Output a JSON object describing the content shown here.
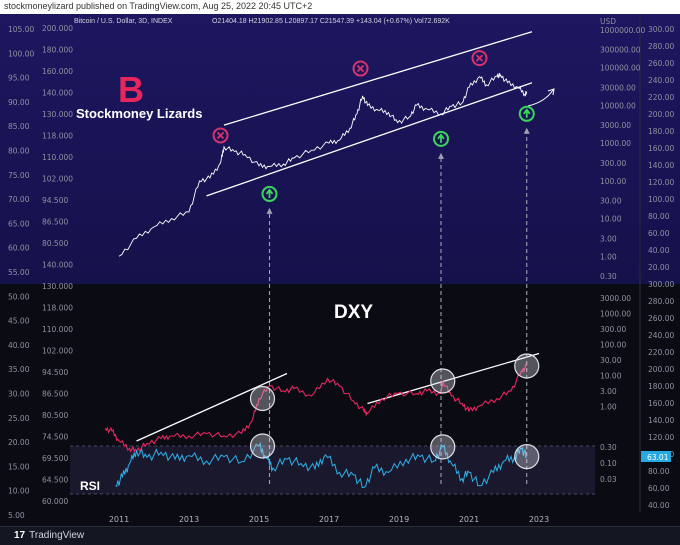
{
  "header": {
    "published_text": "stockmoneylizard published on TradingView.com, Aug 25, 2022 20:45 UTC+2"
  },
  "footer": {
    "logo_text": "TradingView",
    "logo_mark": "17"
  },
  "legend": {
    "symbol": "Bitcoin / U.S. Dollar, 3D, INDEX",
    "ohlc": "O21404.18  H21902.85  L20897.17  C21547.39  +143.04 (+0.67%)  Vol72.692K"
  },
  "annotations": {
    "brand": "Stockmoney Lizards",
    "brand_mark": "B",
    "dxy_label": "DXY",
    "rsi_label": "RSI",
    "currency": "USD"
  },
  "colors": {
    "bg_top": "#1a1557",
    "bg_bottom": "#0b0b14",
    "btc_line": "#ffffff",
    "dxy_line": "#e8265e",
    "rsi_line": "#2fb0e8",
    "sell_marker": "#d6336c",
    "buy_marker": "#3cd65a",
    "trendline": "#ffffff",
    "rsi_badge": "#26a8e0"
  },
  "chart_data": [
    {
      "type": "line",
      "name": "btc-panel",
      "log_scale": true,
      "x": [
        2011.0,
        2011.5,
        2012.0,
        2012.5,
        2013.0,
        2013.3,
        2013.6,
        2013.9,
        2014.0,
        2014.3,
        2014.6,
        2015.0,
        2015.3,
        2015.7,
        2016.0,
        2016.5,
        2017.0,
        2017.3,
        2017.6,
        2017.8,
        2017.96,
        2018.1,
        2018.4,
        2018.7,
        2018.96,
        2019.3,
        2019.5,
        2019.8,
        2020.2,
        2020.5,
        2020.8,
        2021.0,
        2021.3,
        2021.5,
        2021.8,
        2021.9,
        2022.1,
        2022.4,
        2022.6,
        2022.65
      ],
      "values": [
        1,
        3,
        6,
        10,
        15,
        100,
        120,
        300,
        800,
        600,
        500,
        250,
        240,
        280,
        400,
        650,
        1000,
        1200,
        2500,
        6000,
        18000,
        10000,
        7500,
        6500,
        3500,
        5000,
        10000,
        8000,
        6000,
        9500,
        11500,
        30000,
        58000,
        35000,
        60000,
        64000,
        40000,
        30000,
        20000,
        21547
      ],
      "right_axis_ticks": [
        "1000000.00",
        "300000.00",
        "100000.00",
        "30000.00",
        "10000.00",
        "3000.00",
        "1000.00",
        "300.00",
        "100.00",
        "30.00",
        "10.00",
        "3.00",
        "1.00",
        "0.30"
      ],
      "right_axis_values": [
        1000000,
        300000,
        100000,
        30000,
        10000,
        3000,
        1000,
        300,
        100,
        30,
        10,
        3,
        1,
        0.3
      ],
      "trendlines": [
        {
          "from": [
            2014.0,
            3000
          ],
          "to": [
            2022.8,
            900000
          ]
        },
        {
          "from": [
            2013.5,
            40
          ],
          "to": [
            2022.8,
            40000
          ]
        }
      ],
      "sell_markers": [
        {
          "x": 2013.9,
          "y": 1600
        },
        {
          "x": 2017.9,
          "y": 95000
        },
        {
          "x": 2021.3,
          "y": 180000
        }
      ],
      "buy_markers": [
        {
          "x": 2015.3,
          "y": 45
        },
        {
          "x": 2020.2,
          "y": 1300
        },
        {
          "x": 2022.65,
          "y": 6000
        }
      ]
    },
    {
      "type": "line",
      "name": "dxy-panel",
      "x": [
        2010.6,
        2010.8,
        2011.0,
        2011.3,
        2011.5,
        2011.8,
        2012.2,
        2012.5,
        2013.0,
        2013.5,
        2014.0,
        2014.5,
        2014.8,
        2015.0,
        2015.3,
        2015.7,
        2016.0,
        2016.5,
        2016.96,
        2017.3,
        2017.7,
        2018.0,
        2018.1,
        2018.5,
        2018.96,
        2019.5,
        2019.8,
        2020.2,
        2020.25,
        2020.5,
        2020.8,
        2021.0,
        2021.3,
        2021.8,
        2022.2,
        2022.5,
        2022.65
      ],
      "values": [
        83,
        82,
        78,
        75,
        74,
        77,
        79,
        80,
        80,
        81,
        80,
        81,
        86,
        95,
        100,
        98,
        99,
        96,
        103,
        100,
        94,
        90,
        89,
        95,
        97,
        97,
        98,
        97,
        102,
        96,
        93,
        90,
        92,
        95,
        98,
        106,
        108
      ],
      "trendlines": [
        {
          "from": [
            2011.5,
            78
          ],
          "to": [
            2015.8,
            105
          ]
        },
        {
          "from": [
            2018.1,
            93
          ],
          "to": [
            2023.0,
            113
          ]
        }
      ],
      "circles": [
        2015.1,
        2020.25,
        2022.65
      ]
    },
    {
      "type": "line",
      "name": "rsi-panel",
      "x": [
        2010.9,
        2011.1,
        2011.3,
        2011.5,
        2011.8,
        2012.2,
        2012.6,
        2013.0,
        2013.5,
        2014.0,
        2014.5,
        2015.0,
        2015.2,
        2015.4,
        2015.8,
        2016.2,
        2016.6,
        2016.9,
        2017.3,
        2017.7,
        2018.0,
        2018.3,
        2018.7,
        2019.2,
        2019.6,
        2020.0,
        2020.25,
        2020.5,
        2020.8,
        2021.0,
        2021.3,
        2021.7,
        2022.0,
        2022.3,
        2022.5,
        2022.65
      ],
      "values": [
        30,
        40,
        55,
        70,
        62,
        68,
        60,
        64,
        58,
        63,
        57,
        75,
        62,
        50,
        60,
        55,
        49,
        65,
        45,
        42,
        28,
        50,
        45,
        60,
        63,
        58,
        74,
        55,
        38,
        45,
        30,
        45,
        58,
        62,
        72,
        63.01
      ],
      "right_axis_ticks": [
        "0.30",
        "0.10",
        "0.03"
      ],
      "badge": "63.01",
      "circles": [
        2015.1,
        2020.25,
        2022.65
      ]
    },
    {
      "type": "table",
      "name": "axes",
      "x_ticks": [
        "2011",
        "2013",
        "2015",
        "2017",
        "2019",
        "2021",
        "2023"
      ],
      "x_tick_values": [
        2011,
        2013,
        2015,
        2017,
        2019,
        2021,
        2023
      ],
      "left_axis_1": [
        "105.00",
        "100.00",
        "95.00",
        "90.00",
        "85.00",
        "80.00",
        "75.00",
        "70.00",
        "65.00",
        "60.00",
        "55.00",
        "50.00",
        "45.00",
        "40.00",
        "35.00",
        "30.00",
        "25.00",
        "20.00",
        "15.00",
        "10.00",
        "5.00"
      ],
      "left_axis_2": [
        "200.000",
        "180.000",
        "160.000",
        "140.000",
        "130.000",
        "118.000",
        "110.000",
        "102.000",
        "94.500",
        "86.500",
        "80.500",
        "140.000",
        "130.000",
        "118.000",
        "110.000",
        "102.000",
        "94.500",
        "86.500",
        "80.500",
        "74.500",
        "69.500",
        "64.500",
        "60.000"
      ],
      "right_axis_2": [
        "300.00",
        "280.00",
        "260.00",
        "240.00",
        "220.00",
        "200.00",
        "180.00",
        "160.00",
        "140.00",
        "120.00",
        "100.00",
        "80.00",
        "60.00",
        "40.00",
        "20.00",
        "300.00",
        "280.00",
        "260.00",
        "240.00",
        "220.00",
        "200.00",
        "180.00",
        "160.00",
        "140.00",
        "120.00",
        "100.00",
        "80.00",
        "60.00",
        "40.00"
      ],
      "right_axis_3_lower": [
        "3000.00",
        "1000.00",
        "300.00",
        "100.00",
        "30.00",
        "10.00",
        "3.00",
        "1.00"
      ]
    }
  ]
}
